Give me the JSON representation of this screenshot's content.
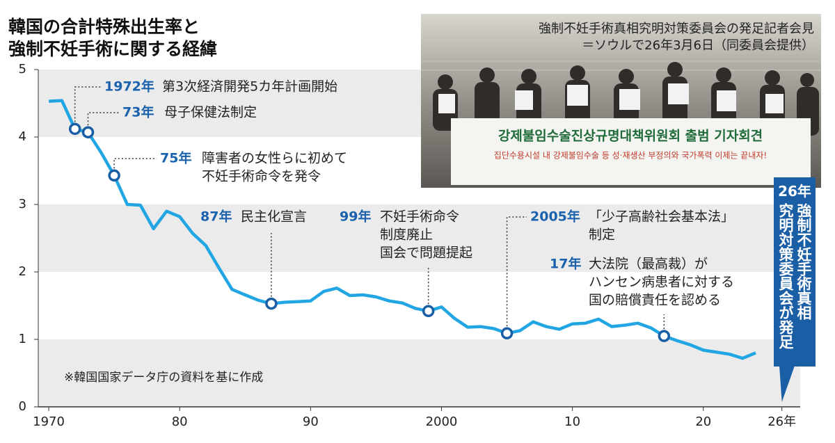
{
  "chart_data": {
    "type": "line",
    "title": [
      "韓国の合計特殊出生率と",
      "強制不妊手術に関する経緯"
    ],
    "x": [
      1970,
      1971,
      1972,
      1973,
      1974,
      1975,
      1976,
      1977,
      1978,
      1979,
      1980,
      1981,
      1982,
      1983,
      1984,
      1985,
      1986,
      1987,
      1988,
      1989,
      1990,
      1991,
      1992,
      1993,
      1994,
      1995,
      1996,
      1997,
      1998,
      1999,
      2000,
      2001,
      2002,
      2003,
      2004,
      2005,
      2006,
      2007,
      2008,
      2009,
      2010,
      2011,
      2012,
      2013,
      2014,
      2015,
      2016,
      2017,
      2018,
      2019,
      2020,
      2021,
      2022,
      2023,
      2024
    ],
    "values": [
      4.53,
      4.54,
      4.12,
      4.07,
      3.77,
      3.43,
      3.0,
      2.99,
      2.64,
      2.9,
      2.82,
      2.57,
      2.39,
      2.06,
      1.74,
      1.66,
      1.58,
      1.53,
      1.55,
      1.56,
      1.57,
      1.71,
      1.76,
      1.65,
      1.66,
      1.63,
      1.57,
      1.54,
      1.46,
      1.42,
      1.48,
      1.31,
      1.18,
      1.19,
      1.16,
      1.09,
      1.13,
      1.26,
      1.19,
      1.15,
      1.23,
      1.24,
      1.3,
      1.19,
      1.21,
      1.24,
      1.17,
      1.05,
      0.98,
      0.92,
      0.84,
      0.81,
      0.78,
      0.72,
      0.8
    ],
    "color": "#22a6e3",
    "xlim": [
      1969.2,
      2027.4
    ],
    "xticks": [
      1970,
      {
        "value": 1980,
        "label": "80"
      },
      {
        "value": 1990,
        "label": "90"
      },
      2000,
      {
        "value": 2010,
        "label": "10"
      },
      {
        "value": 2020,
        "label": "20"
      },
      {
        "value": 2026,
        "label": "26年"
      }
    ],
    "ylim": [
      0,
      5
    ],
    "yticks": [
      0,
      1,
      2,
      3,
      4,
      5
    ],
    "grid": true,
    "annotations": [
      {
        "x": 1972,
        "label": "1972年",
        "text": [
          "第3次経済開発5カ年計画開始"
        ]
      },
      {
        "x": 1973,
        "label": "73年",
        "text": [
          "母子保健法制定"
        ]
      },
      {
        "x": 1975,
        "label": "75年",
        "text": [
          "障害者の女性らに初めて",
          "不妊手術命令を発令"
        ]
      },
      {
        "x": 1987,
        "label": "87年",
        "text": [
          "民主化宣言"
        ]
      },
      {
        "x": 1999,
        "label": "99年",
        "text": [
          "不妊手術命令",
          "制度廃止",
          "国会で問題提起"
        ]
      },
      {
        "x": 2005,
        "label": "2005年",
        "text": [
          "「少子高齢社会基本法」",
          "制定"
        ]
      },
      {
        "x": 2017,
        "label": "17年",
        "text": [
          "大法院（最高裁）が",
          "ハンセン病患者に対する",
          "国の賠償責任を認める"
        ]
      }
    ],
    "callout": {
      "x": 2026,
      "label": "26年",
      "text": [
        "強制不妊手術真相",
        "究明対策委員会が発足"
      ]
    },
    "note": "※韓国国家データ庁の資料を基に作成",
    "photo": {
      "caption": [
        "強制不妊手術真相究明対策委員会の発足記者会見",
        "＝ソウルで26年3月6日（同委員会提供）"
      ],
      "banner": [
        "강제불임수술진상규명대책위원회 출범 기자회견",
        "집단수용시설 내 강제불임수술 등 성·재생산 부정의와 국가폭력 이제는 끝내자!"
      ]
    }
  }
}
